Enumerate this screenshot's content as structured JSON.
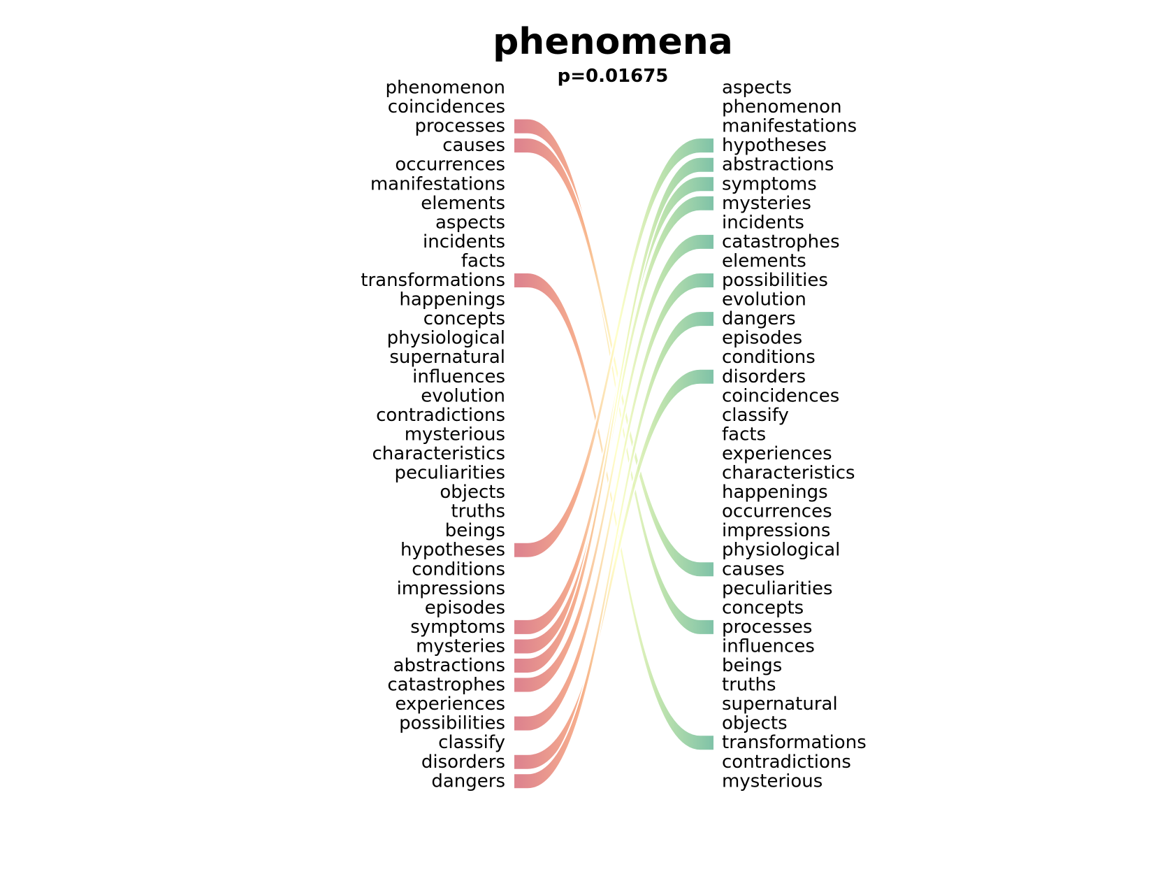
{
  "title": "phenomena",
  "subtitle": "p=0.01675",
  "left_words": [
    "phenomenon",
    "coincidences",
    "processes",
    "causes",
    "occurrences",
    "manifestations",
    "elements",
    "aspects",
    "incidents",
    "facts",
    "transformations",
    "happenings",
    "concepts",
    "physiological",
    "supernatural",
    "influences",
    "evolution",
    "contradictions",
    "mysterious",
    "characteristics",
    "peculiarities",
    "objects",
    "truths",
    "beings",
    "hypotheses",
    "conditions",
    "impressions",
    "episodes",
    "symptoms",
    "mysteries",
    "abstractions",
    "catastrophes",
    "experiences",
    "possibilities",
    "classify",
    "disorders",
    "dangers"
  ],
  "right_words": [
    "aspects",
    "phenomenon",
    "manifestations",
    "hypotheses",
    "abstractions",
    "symptoms",
    "mysteries",
    "incidents",
    "catastrophes",
    "elements",
    "possibilities",
    "evolution",
    "dangers",
    "episodes",
    "conditions",
    "disorders",
    "coincidences",
    "classify",
    "facts",
    "experiences",
    "characteristics",
    "happenings",
    "occurrences",
    "impressions",
    "physiological",
    "causes",
    "peculiarities",
    "concepts",
    "processes",
    "influences",
    "beings",
    "truths",
    "supernatural",
    "objects",
    "transformations",
    "contradictions",
    "mysterious"
  ],
  "links": [
    {
      "word": "processes",
      "left_rank": 2,
      "right_rank": 28
    },
    {
      "word": "causes",
      "left_rank": 3,
      "right_rank": 25
    },
    {
      "word": "transformations",
      "left_rank": 10,
      "right_rank": 34
    },
    {
      "word": "hypotheses",
      "left_rank": 24,
      "right_rank": 3
    },
    {
      "word": "symptoms",
      "left_rank": 28,
      "right_rank": 5
    },
    {
      "word": "mysteries",
      "left_rank": 29,
      "right_rank": 6
    },
    {
      "word": "abstractions",
      "left_rank": 30,
      "right_rank": 4
    },
    {
      "word": "catastrophes",
      "left_rank": 31,
      "right_rank": 8
    },
    {
      "word": "possibilities",
      "left_rank": 33,
      "right_rank": 10
    },
    {
      "word": "disorders",
      "left_rank": 35,
      "right_rank": 15
    },
    {
      "word": "dangers",
      "left_rank": 36,
      "right_rank": 12
    }
  ],
  "colors": {
    "left_end": "#d9707a",
    "left_mid": "#f5a07a",
    "center": "#ffffc0",
    "right_mid": "#b6e0a0",
    "right_end": "#6ab898",
    "text": "#000000"
  }
}
